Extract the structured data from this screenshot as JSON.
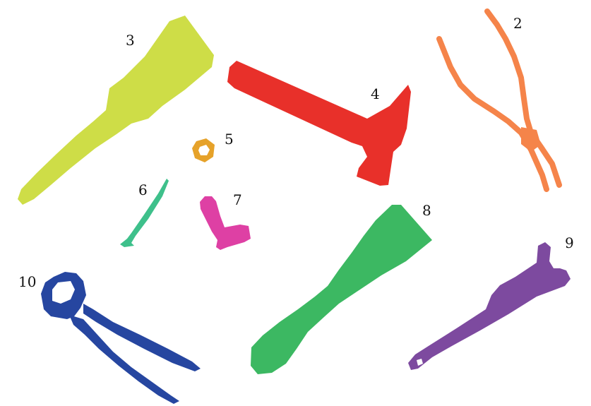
{
  "colors": {
    "brush_3": "#cedd47",
    "hammer_4": "#e8302a",
    "pliers_2": "#f5844a",
    "nut_5": "#e6a22a",
    "screw_6": "#3ec08b",
    "bolt_7": "#de40a4",
    "spatula_8": "#3cb862",
    "wrench_9": "#7d4a9f",
    "nippers_10": "#2646a0"
  },
  "tools": [
    {
      "id": "brush",
      "label": "3",
      "icon": "paintbrush-icon"
    },
    {
      "id": "hammer",
      "label": "4",
      "icon": "hammer-icon"
    },
    {
      "id": "pliers",
      "label": "2",
      "icon": "pliers-icon"
    },
    {
      "id": "nut",
      "label": "5",
      "icon": "hex-nut-icon"
    },
    {
      "id": "screw",
      "label": "6",
      "icon": "screw-icon"
    },
    {
      "id": "bolt",
      "label": "7",
      "icon": "bolt-icon"
    },
    {
      "id": "spatula",
      "label": "8",
      "icon": "spatula-icon"
    },
    {
      "id": "wrench",
      "label": "9",
      "icon": "wrench-icon"
    },
    {
      "id": "nippers",
      "label": "10",
      "icon": "end-nippers-icon"
    }
  ]
}
